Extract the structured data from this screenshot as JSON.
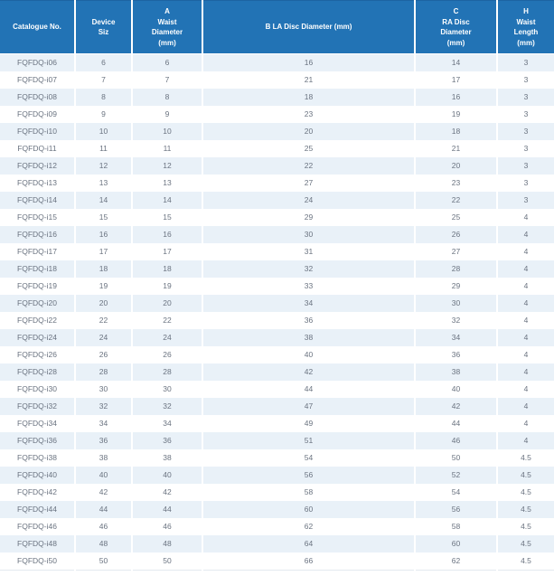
{
  "table": {
    "columns": [
      {
        "id": "catalogue-no",
        "label": "Catalogue No."
      },
      {
        "id": "device-size",
        "label": "Device\nSiz"
      },
      {
        "id": "a-waist-diameter",
        "label": "A\nWaist\nDiameter\n(mm)"
      },
      {
        "id": "b-la-disc-diameter",
        "label": "B LA Disc Diameter (mm)"
      },
      {
        "id": "c-ra-disc-diameter",
        "label": "C\nRA Disc\nDiameter\n(mm)"
      },
      {
        "id": "h-waist-length",
        "label": "H\nWaist\nLength\n(mm)"
      }
    ],
    "rows": [
      [
        "FQFDQ-i06",
        "6",
        "6",
        "16",
        "14",
        "3"
      ],
      [
        "FQFDQ-i07",
        "7",
        "7",
        "21",
        "17",
        "3"
      ],
      [
        "FQFDQ-i08",
        "8",
        "8",
        "18",
        "16",
        "3"
      ],
      [
        "FQFDQ-i09",
        "9",
        "9",
        "23",
        "19",
        "3"
      ],
      [
        "FQFDQ-i10",
        "10",
        "10",
        "20",
        "18",
        "3"
      ],
      [
        "FQFDQ-i11",
        "11",
        "11",
        "25",
        "21",
        "3"
      ],
      [
        "FQFDQ-i12",
        "12",
        "12",
        "22",
        "20",
        "3"
      ],
      [
        "FQFDQ-i13",
        "13",
        "13",
        "27",
        "23",
        "3"
      ],
      [
        "FQFDQ-i14",
        "14",
        "14",
        "24",
        "22",
        "3"
      ],
      [
        "FQFDQ-i15",
        "15",
        "15",
        "29",
        "25",
        "4"
      ],
      [
        "FQFDQ-i16",
        "16",
        "16",
        "30",
        "26",
        "4"
      ],
      [
        "FQFDQ-i17",
        "17",
        "17",
        "31",
        "27",
        "4"
      ],
      [
        "FQFDQ-i18",
        "18",
        "18",
        "32",
        "28",
        "4"
      ],
      [
        "FQFDQ-i19",
        "19",
        "19",
        "33",
        "29",
        "4"
      ],
      [
        "FQFDQ-i20",
        "20",
        "20",
        "34",
        "30",
        "4"
      ],
      [
        "FQFDQ-i22",
        "22",
        "22",
        "36",
        "32",
        "4"
      ],
      [
        "FQFDQ-i24",
        "24",
        "24",
        "38",
        "34",
        "4"
      ],
      [
        "FQFDQ-i26",
        "26",
        "26",
        "40",
        "36",
        "4"
      ],
      [
        "FQFDQ-i28",
        "28",
        "28",
        "42",
        "38",
        "4"
      ],
      [
        "FQFDQ-i30",
        "30",
        "30",
        "44",
        "40",
        "4"
      ],
      [
        "FQFDQ-i32",
        "32",
        "32",
        "47",
        "42",
        "4"
      ],
      [
        "FQFDQ-i34",
        "34",
        "34",
        "49",
        "44",
        "4"
      ],
      [
        "FQFDQ-i36",
        "36",
        "36",
        "51",
        "46",
        "4"
      ],
      [
        "FQFDQ-i38",
        "38",
        "38",
        "54",
        "50",
        "4.5"
      ],
      [
        "FQFDQ-i40",
        "40",
        "40",
        "56",
        "52",
        "4.5"
      ],
      [
        "FQFDQ-i42",
        "42",
        "42",
        "58",
        "54",
        "4.5"
      ],
      [
        "FQFDQ-i44",
        "44",
        "44",
        "60",
        "56",
        "4.5"
      ],
      [
        "FQFDQ-i46",
        "46",
        "46",
        "62",
        "58",
        "4.5"
      ],
      [
        "FQFDQ-i48",
        "48",
        "48",
        "64",
        "60",
        "4.5"
      ],
      [
        "FQFDQ-i50",
        "50",
        "50",
        "66",
        "62",
        "4.5"
      ]
    ]
  },
  "colors": {
    "header_background": "#2273b5",
    "header_text": "#ffffff",
    "stripe_row_background": "#e9f1f8",
    "body_text": "#6a7380"
  }
}
